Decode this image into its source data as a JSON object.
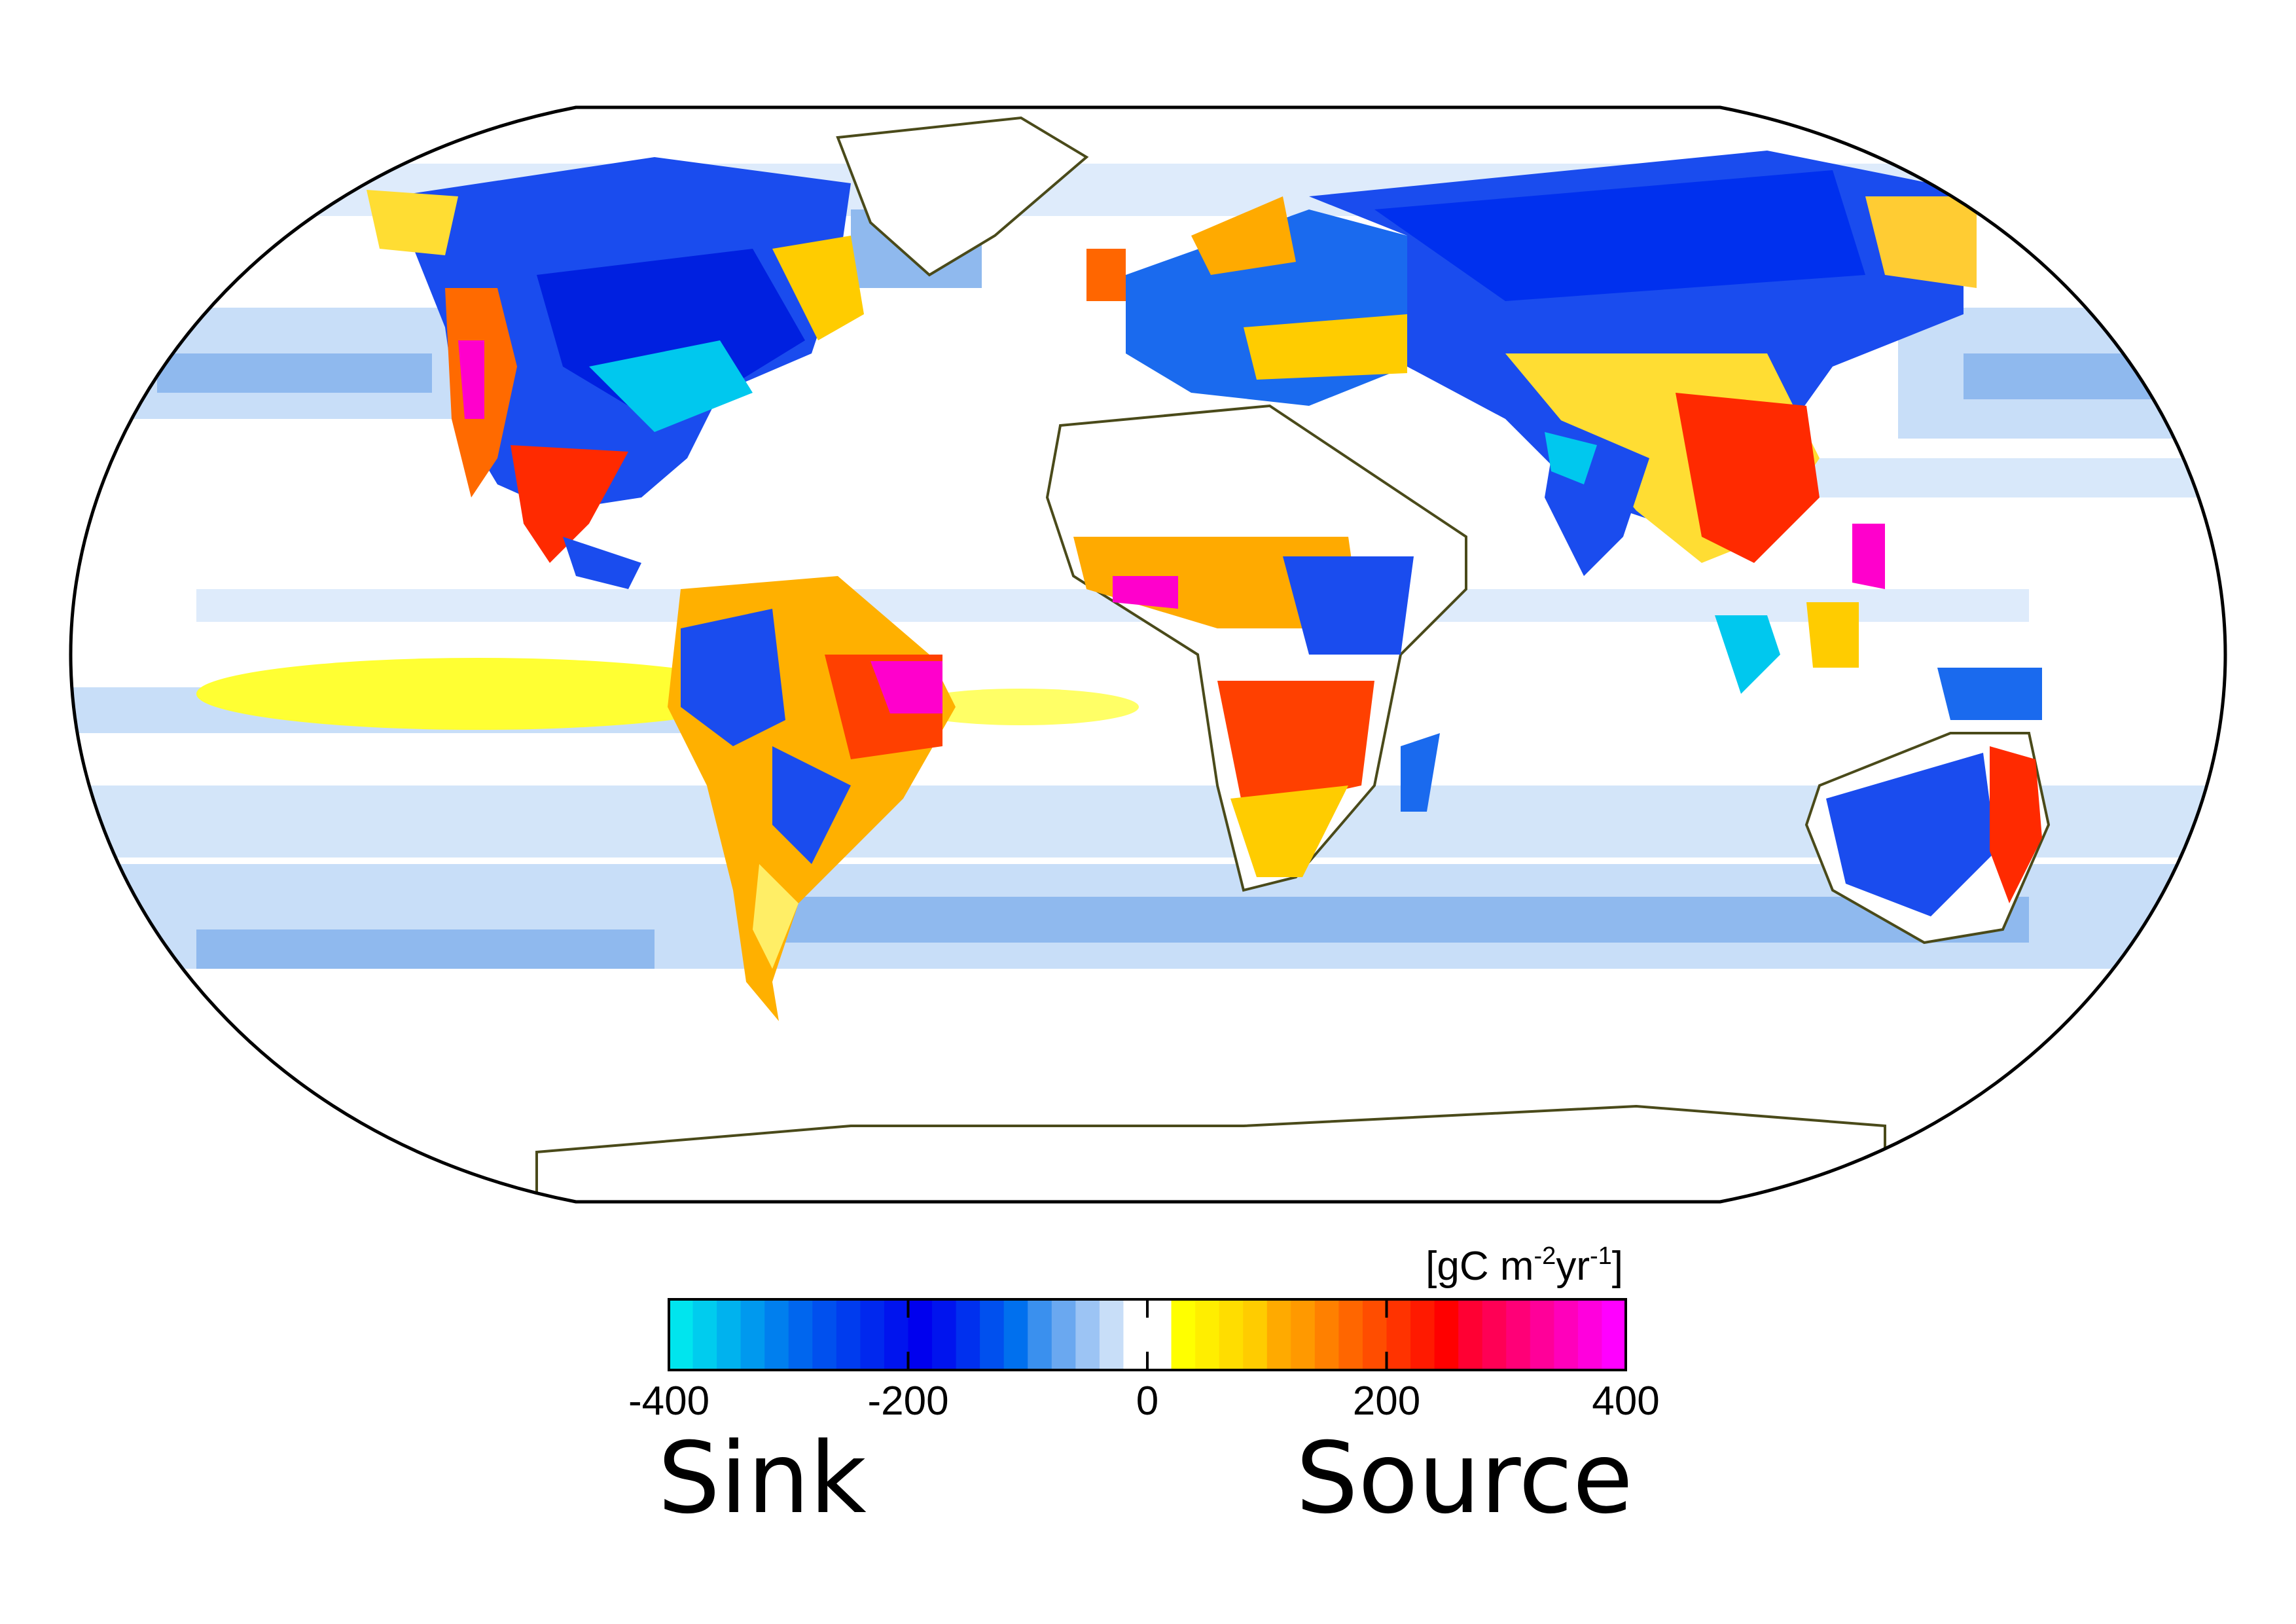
{
  "map": {
    "projection": "Robinson",
    "background": "#ffffff",
    "outline_color": "#000000",
    "coast_color": "#4a4a1a"
  },
  "colorbar": {
    "unit": {
      "prefix": "[gC m",
      "sup1": "-2",
      "mid": "yr",
      "sup2": "-1",
      "suffix": "]"
    },
    "ticks": [
      {
        "value": -400,
        "label": "-400"
      },
      {
        "value": -200,
        "label": "-200"
      },
      {
        "value": 0,
        "label": "0"
      },
      {
        "value": 200,
        "label": "200"
      },
      {
        "value": 400,
        "label": "400"
      }
    ],
    "range": [
      -400,
      400
    ],
    "stops": [
      "#00e5ee",
      "#00ccee",
      "#00b2ee",
      "#0099ee",
      "#007fee",
      "#0066ee",
      "#0050ee",
      "#003cee",
      "#0028ee",
      "#0014ee",
      "#0000ee",
      "#0014ee",
      "#0030ee",
      "#0050ee",
      "#0070ee",
      "#3a90ee",
      "#6aa8f0",
      "#9cc4f4",
      "#c8def8",
      "#ffffff",
      "#ffffff",
      "#ffff00",
      "#ffee00",
      "#ffdd00",
      "#ffcc00",
      "#ffaa00",
      "#ff9900",
      "#ff8000",
      "#ff6600",
      "#ff4d00",
      "#ff3300",
      "#ff1a00",
      "#ff0000",
      "#ff0033",
      "#ff0055",
      "#ff0077",
      "#ff0099",
      "#ff00bb",
      "#ff00dd",
      "#ff00ff"
    ],
    "left_word": "Sink",
    "right_word": "Source"
  }
}
